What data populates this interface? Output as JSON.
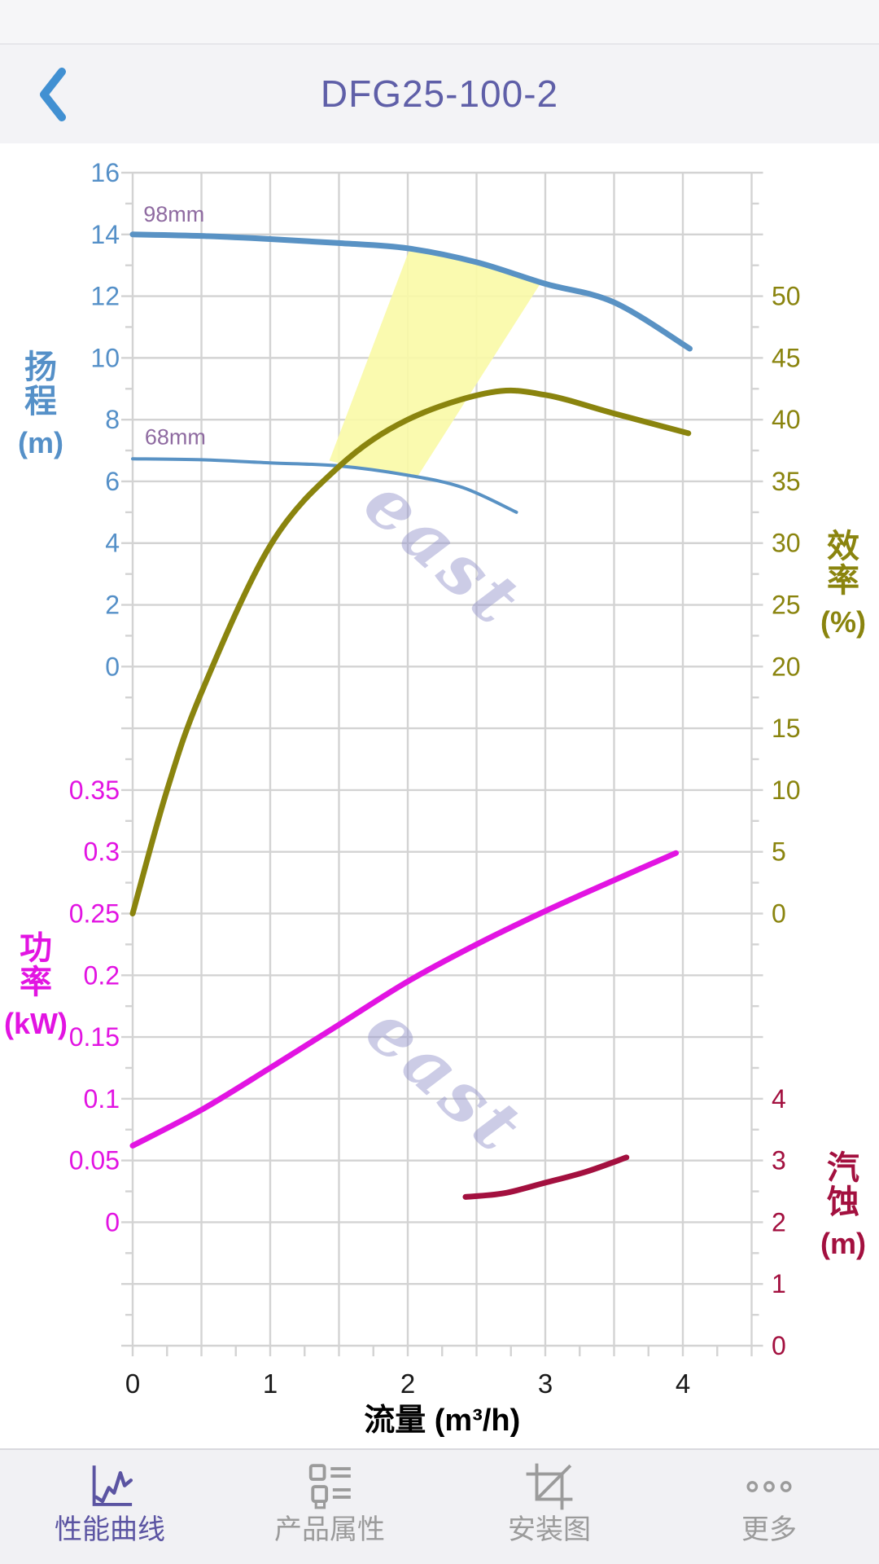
{
  "header": {
    "title": "DFG25-100-2"
  },
  "chart_data": {
    "type": "line",
    "x_axis": {
      "label": "流量 (m³/h)",
      "min": 0,
      "max": 4.5,
      "ticks": [
        0,
        1,
        2,
        3,
        4
      ],
      "gridline_step": 0.5,
      "minor_tick_step": 0.25
    },
    "y_axes": {
      "head": {
        "label": "扬程",
        "unit": "(m)",
        "color": "#5590c8",
        "side": "left",
        "ticks": [
          16,
          14,
          12,
          10,
          8,
          6,
          4,
          2,
          0
        ]
      },
      "power": {
        "label": "功率",
        "unit": "(kW)",
        "color": "#e214e2",
        "side": "left",
        "ticks": [
          0.35,
          0.3,
          0.25,
          0.2,
          0.15,
          0.1,
          0.05,
          0
        ]
      },
      "eff": {
        "label": "效率",
        "unit": "(%)",
        "color": "#8a840e",
        "side": "right",
        "ticks": [
          50,
          45,
          40,
          35,
          30,
          25,
          20,
          15,
          10,
          5,
          0
        ]
      },
      "npsh": {
        "label": "汽蚀",
        "unit": "(m)",
        "color": "#a3103f",
        "side": "right",
        "ticks": [
          4,
          3,
          2,
          1,
          0
        ]
      }
    },
    "series": [
      {
        "name": "head-curve-98mm",
        "axis": "head",
        "color": "#5992c4",
        "width": 7,
        "points": [
          [
            0,
            14.0
          ],
          [
            0.5,
            13.95
          ],
          [
            1,
            13.85
          ],
          [
            1.5,
            13.72
          ],
          [
            2,
            13.55
          ],
          [
            2.5,
            13.1
          ],
          [
            3,
            12.4
          ],
          [
            3.5,
            11.8
          ],
          [
            4.05,
            10.3
          ]
        ]
      },
      {
        "name": "head-curve-68mm",
        "axis": "head",
        "color": "#5992c4",
        "width": 4,
        "points": [
          [
            0,
            6.73
          ],
          [
            0.5,
            6.7
          ],
          [
            1,
            6.6
          ],
          [
            1.5,
            6.5
          ],
          [
            2,
            6.2
          ],
          [
            2.4,
            5.8
          ],
          [
            2.79,
            5.0
          ]
        ]
      },
      {
        "name": "efficiency-curve",
        "axis": "eff",
        "color": "#8a840e",
        "width": 7,
        "points": [
          [
            0,
            0
          ],
          [
            0.25,
            10
          ],
          [
            0.5,
            17.9
          ],
          [
            1,
            29.8
          ],
          [
            1.5,
            36.2
          ],
          [
            2,
            40
          ],
          [
            2.6,
            42.2
          ],
          [
            3,
            42
          ],
          [
            3.5,
            40.5
          ],
          [
            4.04,
            38.9
          ]
        ]
      },
      {
        "name": "power-curve",
        "axis": "power",
        "color": "#e214e2",
        "width": 7,
        "points": [
          [
            0,
            0.062
          ],
          [
            0.5,
            0.091
          ],
          [
            1,
            0.125
          ],
          [
            1.5,
            0.16
          ],
          [
            2,
            0.195
          ],
          [
            2.5,
            0.225
          ],
          [
            3,
            0.252
          ],
          [
            3.5,
            0.277
          ],
          [
            3.95,
            0.299
          ]
        ]
      },
      {
        "name": "npsh-curve",
        "axis": "npsh",
        "color": "#a3103f",
        "width": 7,
        "points": [
          [
            2.42,
            2.41
          ],
          [
            2.7,
            2.47
          ],
          [
            3,
            2.64
          ],
          [
            3.3,
            2.82
          ],
          [
            3.59,
            3.05
          ]
        ]
      }
    ],
    "annotations": [
      {
        "text": "98mm",
        "axis": "head",
        "flow": 0.3,
        "value": 14.42,
        "color": "#8f6ba1"
      },
      {
        "text": "68mm",
        "axis": "head",
        "flow": 0.31,
        "value": 7.2,
        "color": "#8f6ba1"
      }
    ],
    "operating_region": {
      "color": "#f9f9a6",
      "corners_flow_head": [
        [
          2.01,
          13.48
        ],
        [
          2.97,
          12.45
        ],
        [
          2.07,
          6.15
        ],
        [
          1.43,
          6.67
        ]
      ],
      "top_control": [
        2.51,
        13.23
      ],
      "bottom_control": [
        1.75,
        6.29
      ]
    },
    "watermark": {
      "text": "east",
      "color": "rgba(148,148,202,0.48)"
    },
    "grid_color": "#d3d3d3",
    "x_label_color": "#1a1a1a"
  },
  "tabbar": {
    "active_color": "#5b54a2",
    "inactive_color": "#9b9b9b",
    "items": [
      {
        "label": "性能曲线",
        "icon": "line-chart-icon",
        "active": true
      },
      {
        "label": "产品属性",
        "icon": "spec-list-icon",
        "active": false
      },
      {
        "label": "安装图",
        "icon": "installation-diagram-icon",
        "active": false
      },
      {
        "label": "更多",
        "icon": "more-dots-icon",
        "active": false
      }
    ]
  }
}
